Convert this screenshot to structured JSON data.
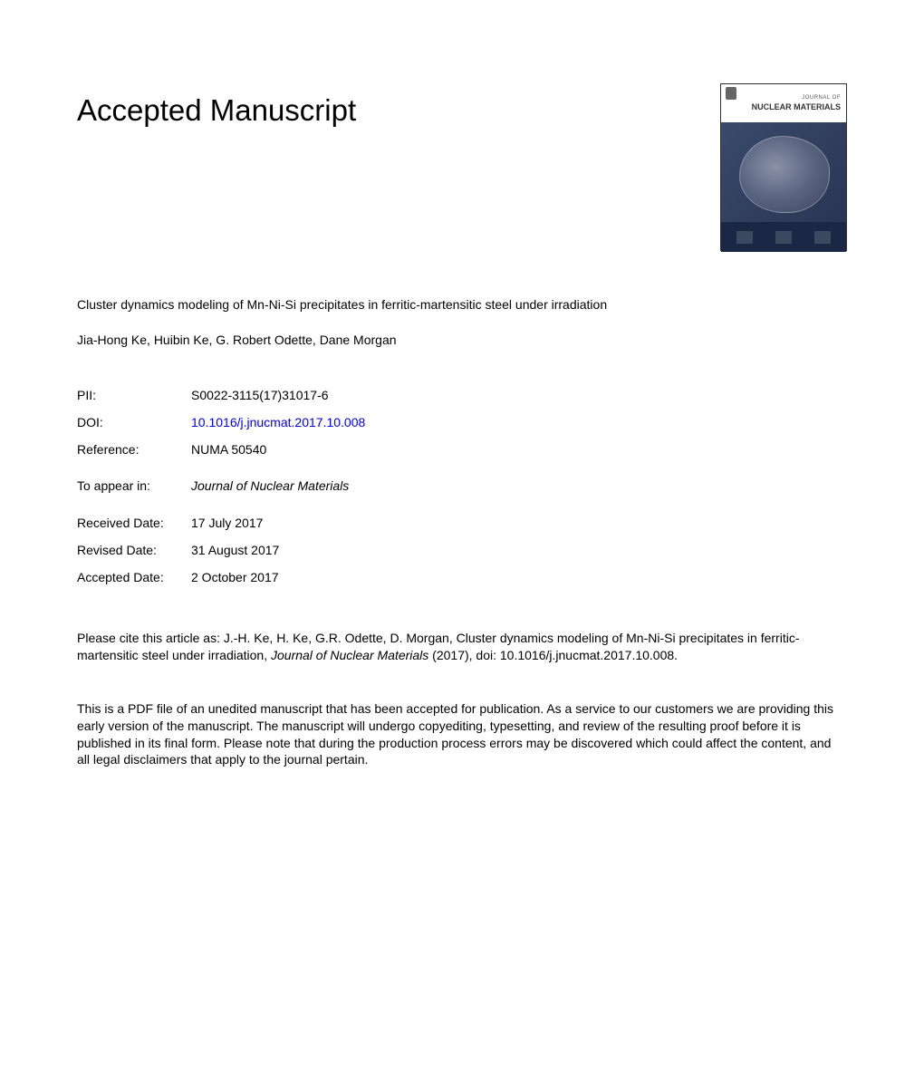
{
  "heading": "Accepted Manuscript",
  "cover": {
    "journal_of": "JOURNAL OF",
    "title": "NUCLEAR MATERIALS"
  },
  "article": {
    "title": "Cluster dynamics modeling of Mn-Ni-Si precipitates in ferritic-martensitic steel under irradiation",
    "authors": "Jia-Hong Ke, Huibin Ke, G. Robert Odette, Dane Morgan"
  },
  "metadata": {
    "pii": {
      "label": "PII:",
      "value": "S0022-3115(17)31017-6"
    },
    "doi": {
      "label": "DOI:",
      "value": "10.1016/j.jnucmat.2017.10.008"
    },
    "reference": {
      "label": "Reference:",
      "value": "NUMA 50540"
    }
  },
  "appear": {
    "label": "To appear in:",
    "value": "Journal of Nuclear Materials"
  },
  "dates": {
    "received": {
      "label": "Received Date:",
      "value": "17 July 2017"
    },
    "revised": {
      "label": "Revised Date:",
      "value": "31 August 2017"
    },
    "accepted": {
      "label": "Accepted Date:",
      "value": "2 October 2017"
    }
  },
  "citation": {
    "prefix": "Please cite this article as: J.-H. Ke, H. Ke, G.R. Odette, D. Morgan, Cluster dynamics modeling of Mn-Ni-Si precipitates in ferritic-martensitic steel under irradiation, ",
    "journal": "Journal of Nuclear Materials",
    "suffix": " (2017), doi: 10.1016/j.jnucmat.2017.10.008."
  },
  "disclaimer": "This is a PDF file of an unedited manuscript that has been accepted for publication. As a service to our customers we are providing this early version of the manuscript. The manuscript will undergo copyediting, typesetting, and review of the resulting proof before it is published in its final form. Please note that during the production process errors may be discovered which could affect the content, and all legal disclaimers that apply to the journal pertain."
}
